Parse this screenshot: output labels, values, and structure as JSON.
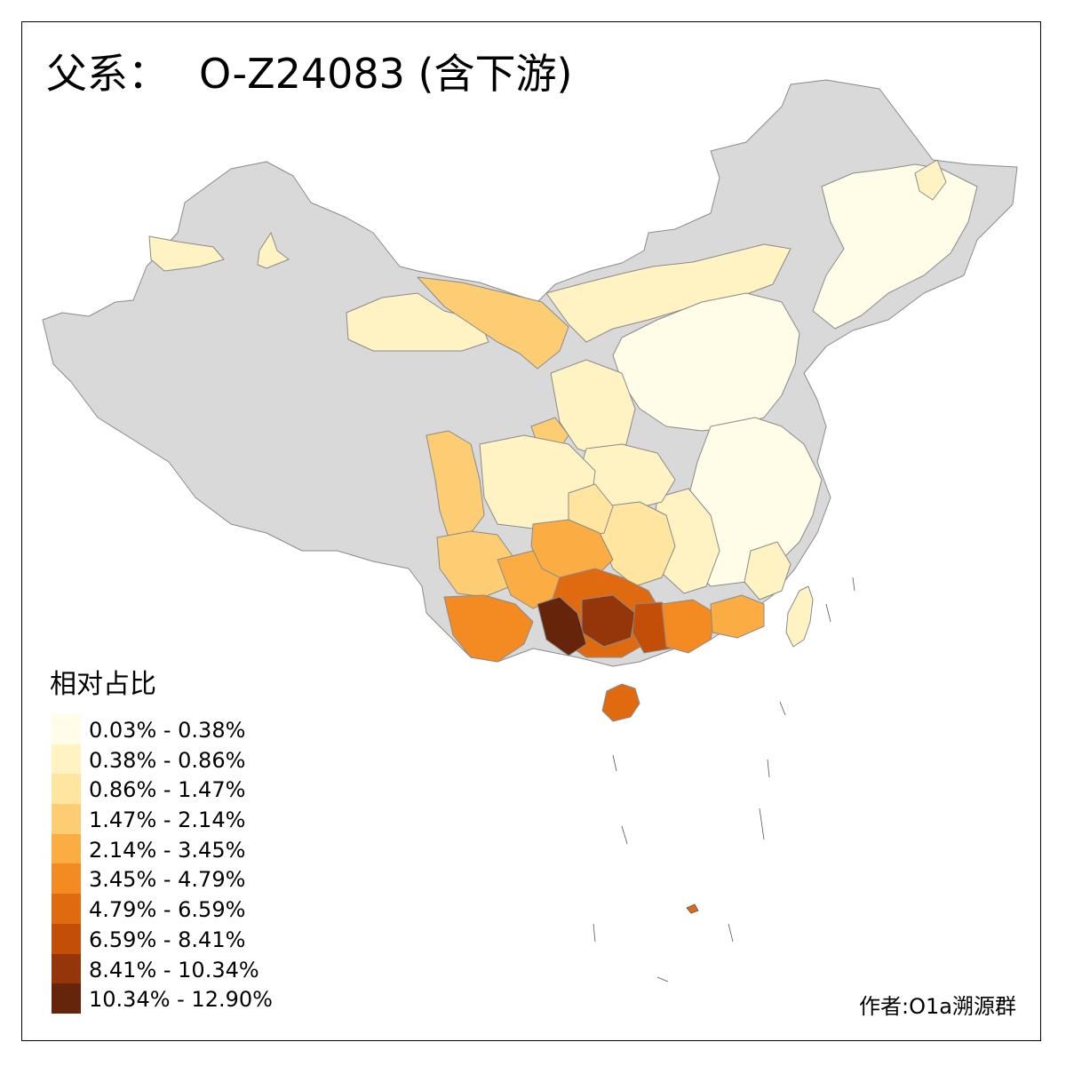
{
  "title": {
    "prefix": "父系：",
    "haplogroup": "O-Z24083 (含下游)"
  },
  "legend": {
    "title": "相对占比",
    "no_data_color": "#d9d9d9",
    "items": [
      {
        "label": "0.03% - 0.38%",
        "color": "#fffde8"
      },
      {
        "label": "0.38% - 0.86%",
        "color": "#fff3c4"
      },
      {
        "label": "0.86% - 1.47%",
        "color": "#ffe5a0"
      },
      {
        "label": "1.47% - 2.14%",
        "color": "#fdcd73"
      },
      {
        "label": "2.14% - 3.45%",
        "color": "#fbad43"
      },
      {
        "label": "3.45% - 4.79%",
        "color": "#f38b22"
      },
      {
        "label": "4.79% - 6.59%",
        "color": "#e06a10"
      },
      {
        "label": "6.59% - 8.41%",
        "color": "#c24e08"
      },
      {
        "label": "8.41% - 10.34%",
        "color": "#95360a"
      },
      {
        "label": "10.34% - 12.90%",
        "color": "#66240a"
      }
    ]
  },
  "credit": "作者:O1a溯源群"
}
